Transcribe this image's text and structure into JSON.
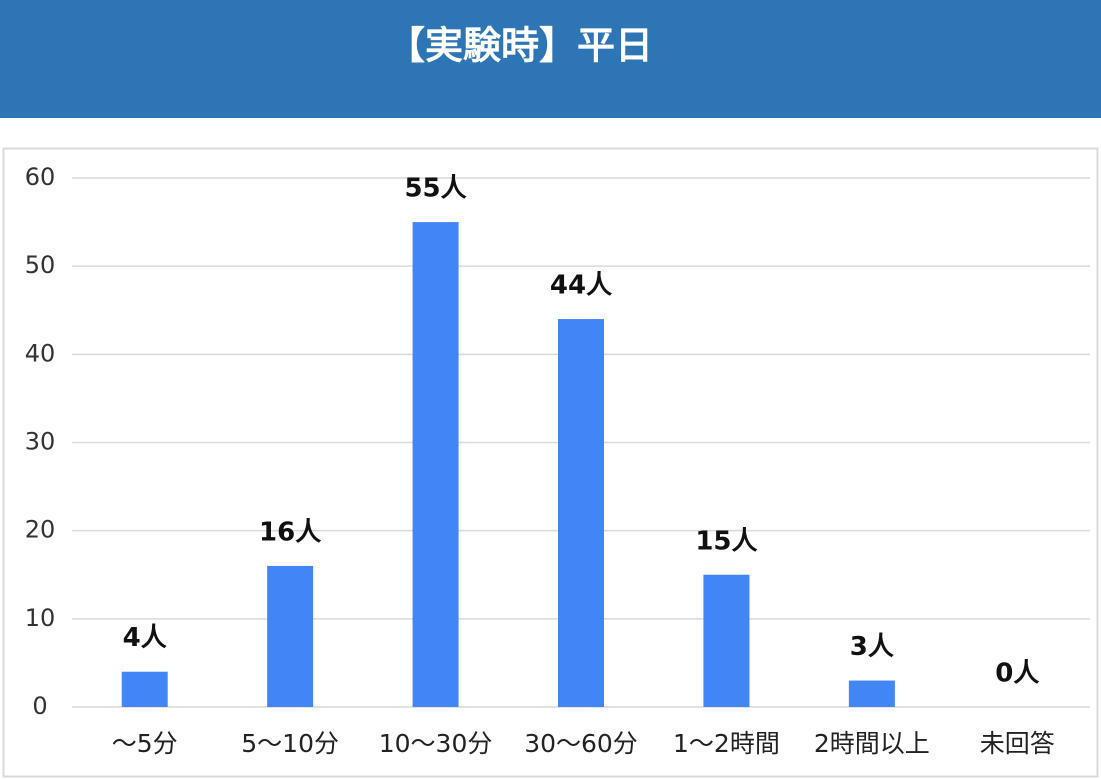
{
  "chart_data": {
    "type": "bar",
    "title": "【実験時】平日",
    "categories": [
      "～5分",
      "5～10分",
      "10～30分",
      "30～60分",
      "1～2時間",
      "2時間以上",
      "未回答"
    ],
    "values": [
      4,
      16,
      55,
      44,
      15,
      3,
      0
    ],
    "value_labels": [
      "4人",
      "16人",
      "55人",
      "44人",
      "15人",
      "3人",
      "0人"
    ],
    "color": "#4285f4",
    "ylim": [
      0,
      60
    ],
    "yticks": [
      0,
      10,
      20,
      30,
      40,
      50,
      60
    ],
    "grid": true
  }
}
